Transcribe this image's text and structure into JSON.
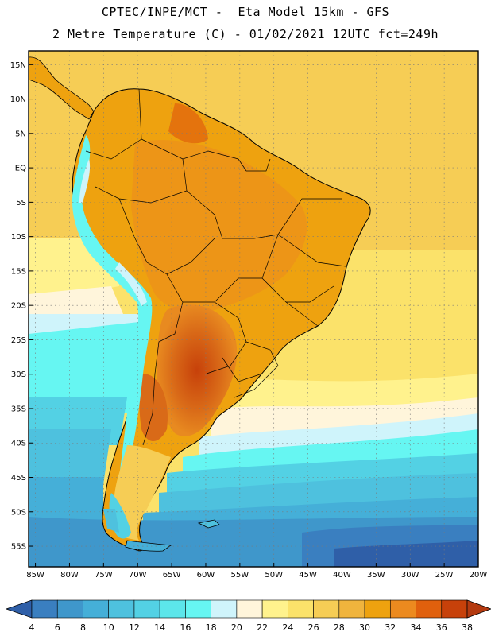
{
  "title": {
    "line1": "CPTEC/INPE/MCT -  Eta Model 15km - GFS",
    "line2": "2 Metre Temperature (C) - 01/02/2021 12UTC fct=249h"
  },
  "map": {
    "lon_labels": [
      "85W",
      "80W",
      "75W",
      "70W",
      "65W",
      "60W",
      "55W",
      "50W",
      "45W",
      "40W",
      "35W",
      "30W",
      "25W",
      "20W"
    ],
    "lat_labels": [
      "15N",
      "10N",
      "5N",
      "EQ",
      "5S",
      "10S",
      "15S",
      "20S",
      "25S",
      "30S",
      "35S",
      "40S",
      "45S",
      "50S",
      "55S"
    ]
  },
  "colorbar": {
    "labels": [
      "4",
      "6",
      "8",
      "10",
      "12",
      "14",
      "16",
      "18",
      "20",
      "22",
      "24",
      "26",
      "28",
      "30",
      "32",
      "34",
      "36",
      "38"
    ],
    "colors": [
      "#2f5fa8",
      "#3a7fc0",
      "#3f97cb",
      "#45afd8",
      "#4ec1de",
      "#53d1e4",
      "#5ce6ea",
      "#66f6f2",
      "#cff4fb",
      "#fff5db",
      "#fff28d",
      "#fbe26a",
      "#f6cd55",
      "#f0b43d",
      "#eea20f",
      "#ec8a1f",
      "#e0600d",
      "#c7410a",
      "#b43a10"
    ]
  },
  "colors": {
    "ocean_warm": "#fbe26a",
    "ocean_mid": "#f6cd55",
    "land_hot": "#d96a18",
    "land_warm": "#eea20f",
    "andes": "#66f6f2",
    "ocean_cold": "#4ec1de",
    "ocean_deep": "#2f5fa8"
  }
}
